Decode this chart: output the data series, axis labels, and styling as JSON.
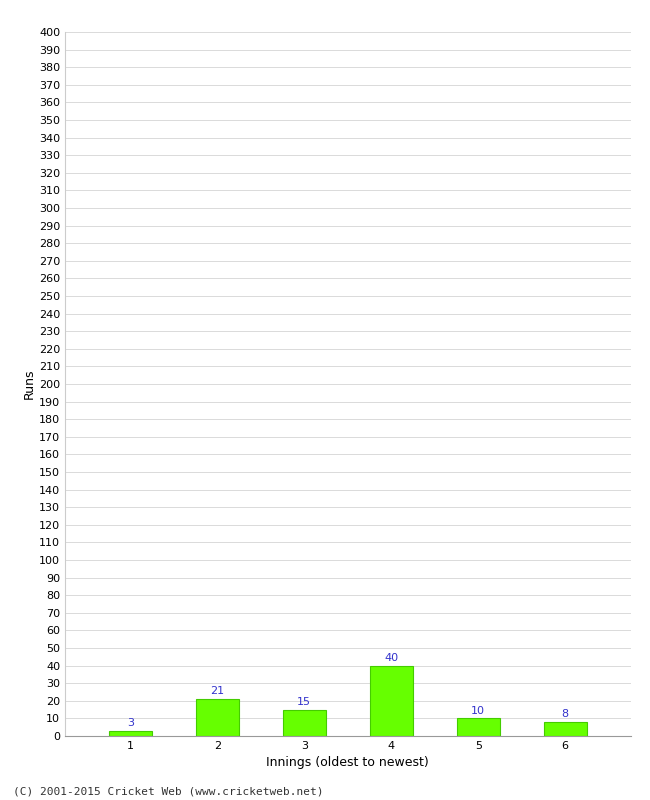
{
  "xlabel": "Innings (oldest to newest)",
  "ylabel": "Runs",
  "categories": [
    1,
    2,
    3,
    4,
    5,
    6
  ],
  "values": [
    3,
    21,
    15,
    40,
    10,
    8
  ],
  "bar_color": "#66ff00",
  "bar_edge_color": "#44cc00",
  "label_color": "#3333cc",
  "ylim": [
    0,
    400
  ],
  "ytick_step": 10,
  "background_color": "#ffffff",
  "footer_text": "(C) 2001-2015 Cricket Web (www.cricketweb.net)",
  "grid_color": "#cccccc",
  "tick_fontsize": 8,
  "label_fontsize": 9,
  "footer_fontsize": 8
}
